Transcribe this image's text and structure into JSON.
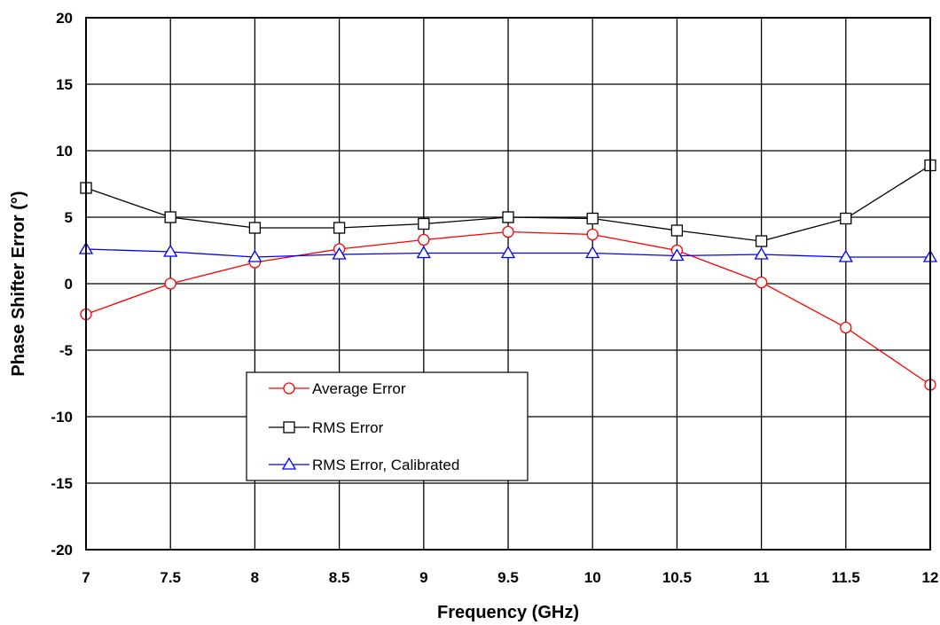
{
  "chart_data": {
    "type": "line",
    "title": "",
    "xlabel": "Frequency (GHz)",
    "ylabel": "Phase Shifter Error (°)",
    "xlim": [
      7,
      12
    ],
    "ylim": [
      -20,
      20
    ],
    "x_ticks": [
      "7",
      "7.5",
      "8",
      "8.5",
      "9",
      "9.5",
      "10",
      "10.5",
      "11",
      "11.5",
      "12"
    ],
    "y_ticks": [
      "20",
      "15",
      "10",
      "5",
      "0",
      "-5",
      "-10",
      "-15",
      "-20"
    ],
    "grid": true,
    "legend_position": "lower-left",
    "x": [
      7,
      7.5,
      8,
      8.5,
      9,
      9.5,
      10,
      10.5,
      11,
      11.5,
      12
    ],
    "series": [
      {
        "name": "Average Error",
        "color": "#ff0000",
        "marker": "circle",
        "values": [
          -2.3,
          0.0,
          1.6,
          2.6,
          3.3,
          3.9,
          3.7,
          2.5,
          0.1,
          -3.3,
          -7.6
        ]
      },
      {
        "name": "RMS Error",
        "color": "#000000",
        "marker": "square",
        "values": [
          7.2,
          5.0,
          4.2,
          4.2,
          4.5,
          5.0,
          4.9,
          4.0,
          3.2,
          4.9,
          8.9
        ]
      },
      {
        "name": "RMS Error, Calibrated",
        "color": "#0000ff",
        "marker": "triangle",
        "values": [
          2.6,
          2.4,
          2.0,
          2.2,
          2.3,
          2.3,
          2.3,
          2.1,
          2.2,
          2.0,
          2.0
        ]
      }
    ]
  }
}
